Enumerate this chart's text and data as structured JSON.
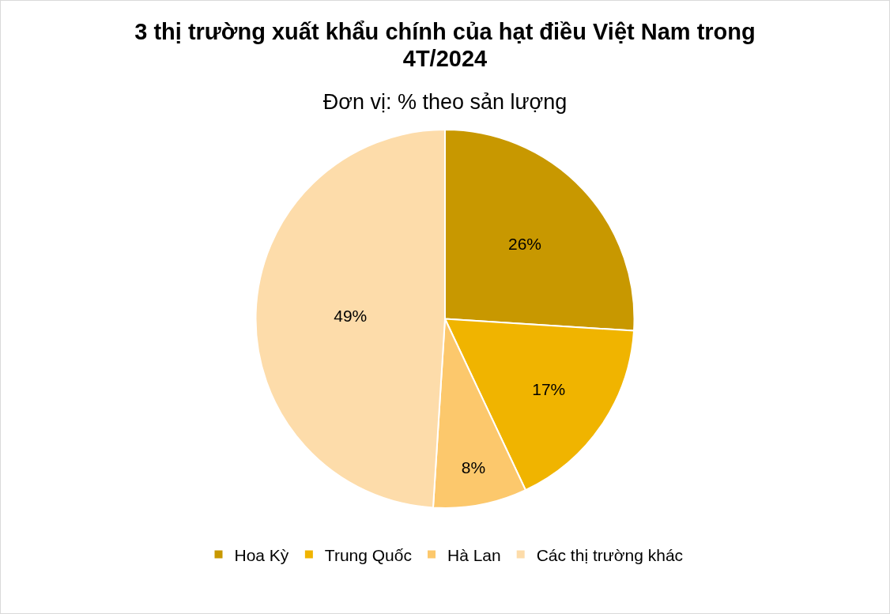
{
  "chart_data": {
    "type": "pie",
    "title": "3 thị trường xuất khẩu chính của hạt điều Việt Nam trong 4T/2024",
    "subtitle": "Đơn vị: % theo sản lượng",
    "categories": [
      "Hoa Kỳ",
      "Trung Quốc",
      "Hà Lan",
      "Các thị trường khác"
    ],
    "values": [
      26,
      17,
      8,
      49
    ],
    "colors": [
      "#c89800",
      "#f0b400",
      "#fcc86c",
      "#fddcaa"
    ],
    "value_labels": [
      "26%",
      "17%",
      "8%",
      "49%"
    ],
    "legend": "bottom"
  }
}
